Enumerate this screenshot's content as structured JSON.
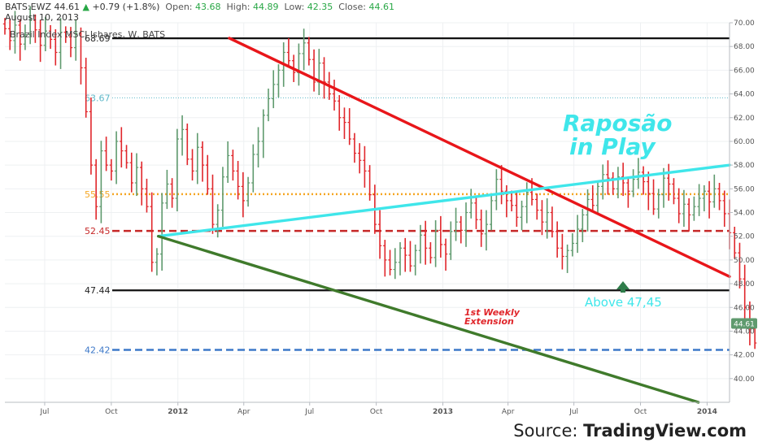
{
  "header": {
    "symbol": "BATS:EWZ",
    "last": "44.61",
    "change": "+0.79 (+1.8%)",
    "open_label": "Open:",
    "open": "43.68",
    "high_label": "High:",
    "high": "44.89",
    "low_label": "Low:",
    "low": "42.35",
    "close_label": "Close:",
    "close": "44.61",
    "date": "August 10, 2013"
  },
  "source": {
    "prefix": "Source: ",
    "brand": "TradingView.com"
  },
  "colors": {
    "up": "#5f9a6e",
    "down": "#e0262b",
    "black": "#111111",
    "red_line": "#e8161a",
    "cyan": "#3fe6ea",
    "green_line": "#3f7a2b",
    "orange": "#f5a623",
    "dark_red": "#c62828",
    "blue": "#3d78c8",
    "teal_dot": "#5fb8c9"
  },
  "chart_data": {
    "type": "candlestick",
    "title": "Brazil Index MSCI Ishares, W, BATS",
    "ylim": [
      38,
      70
    ],
    "y_ticks": [
      40,
      42,
      44,
      46,
      48,
      50,
      52,
      54,
      56,
      58,
      60,
      62,
      64,
      66,
      68,
      70
    ],
    "y_tick_labels": [
      "40.00",
      "42.00",
      "44.00",
      "46.00",
      "48.00",
      "50.00",
      "52.00",
      "54.00",
      "56.00",
      "58.00",
      "60.00",
      "62.00",
      "64.00",
      "66.00",
      "68.00",
      "70.00"
    ],
    "x_range": [
      "2011-05-07",
      "2014-02-01"
    ],
    "x_ticks": [
      {
        "label": "Jul",
        "date": "2011-07-01",
        "bold": false
      },
      {
        "label": "Oct",
        "date": "2011-10-01",
        "bold": false
      },
      {
        "label": "2012",
        "date": "2012-01-01",
        "bold": true
      },
      {
        "label": "Apr",
        "date": "2012-04-01",
        "bold": false
      },
      {
        "label": "Jul",
        "date": "2012-07-01",
        "bold": false
      },
      {
        "label": "Oct",
        "date": "2012-10-01",
        "bold": false
      },
      {
        "label": "2013",
        "date": "2013-01-01",
        "bold": true
      },
      {
        "label": "Apr",
        "date": "2013-04-01",
        "bold": false
      },
      {
        "label": "Jul",
        "date": "2013-07-01",
        "bold": false
      },
      {
        "label": "Oct",
        "date": "2013-10-01",
        "bold": false
      },
      {
        "label": "2014",
        "date": "2014-01-01",
        "bold": true
      }
    ],
    "first_week": "2011-05-07",
    "closes": [
      69.5,
      68.5,
      69.8,
      68.2,
      69.0,
      70.2,
      69.4,
      68.1,
      69.3,
      68.6,
      67.5,
      69.2,
      68.8,
      67.9,
      69.1,
      66.2,
      62.5,
      58.0,
      54.5,
      59.2,
      58.0,
      57.5,
      60.0,
      59.2,
      58.2,
      56.5,
      57.8,
      56.0,
      54.5,
      49.8,
      50.5,
      54.8,
      56.4,
      55.2,
      60.2,
      61.0,
      58.5,
      57.5,
      59.5,
      58.0,
      56.0,
      53.0,
      54.2,
      57.0,
      58.8,
      57.5,
      56.2,
      55.0,
      56.5,
      58.9,
      60.0,
      62.2,
      63.6,
      64.8,
      66.0,
      67.5,
      66.8,
      65.8,
      67.4,
      68.3,
      66.9,
      65.0,
      66.6,
      65.0,
      64.0,
      63.4,
      62.0,
      61.6,
      60.2,
      59.0,
      58.4,
      57.5,
      55.5,
      53.0,
      51.2,
      50.0,
      49.2,
      49.8,
      51.0,
      50.4,
      49.5,
      50.8,
      52.1,
      51.0,
      50.2,
      52.5,
      51.3,
      50.5,
      52.4,
      53.2,
      52.5,
      54.0,
      54.8,
      53.4,
      52.2,
      53.0,
      55.0,
      56.8,
      55.8,
      55.0,
      54.6,
      53.6,
      54.5,
      55.7,
      55.1,
      54.2,
      53.2,
      54.0,
      52.4,
      51.0,
      50.3,
      50.8,
      51.4,
      52.6,
      53.8,
      55.1,
      54.6,
      56.2,
      57.2,
      56.9,
      56.0,
      57.0,
      56.5,
      55.8,
      56.8,
      57.4,
      56.6,
      55.6,
      54.3,
      55.5,
      56.9,
      56.4,
      55.2,
      53.9,
      54.7,
      53.8,
      54.5,
      55.2,
      55.8,
      54.9,
      56.0,
      55.0,
      53.9,
      52.3,
      50.6,
      48.4,
      46.0,
      44.2,
      43.0,
      43.8,
      45.0,
      41.2,
      42.5,
      43.1,
      44.8,
      43.8,
      44.6
    ],
    "h_levels": [
      {
        "value": 68.69,
        "label": "68.69",
        "style": "solid",
        "color": "black"
      },
      {
        "value": 63.67,
        "label": "63.67",
        "style": "dotted",
        "color": "teal_dot"
      },
      {
        "value": 55.55,
        "label": "55.55",
        "style": "dotted",
        "color": "orange"
      },
      {
        "value": 52.45,
        "label": "52.45",
        "style": "dashed",
        "color": "dark_red"
      },
      {
        "value": 47.44,
        "label": "47.44",
        "style": "solid",
        "color": "black"
      },
      {
        "value": 42.42,
        "label": "42.42",
        "style": "dashed",
        "color": "blue"
      }
    ],
    "trendlines": [
      {
        "name": "upper-downtrend",
        "color": "red_line",
        "start": [
          "2012-03-12",
          68.7
        ],
        "end": [
          "2014-02-01",
          48.6
        ]
      },
      {
        "name": "rising-cyan",
        "color": "cyan",
        "start": [
          "2011-12-05",
          52.0
        ],
        "end": [
          "2014-02-01",
          58.0
        ]
      },
      {
        "name": "lower-green",
        "color": "green_line",
        "start": [
          "2011-12-05",
          52.0
        ],
        "end": [
          "2013-12-20",
          38.0
        ]
      }
    ],
    "last_price_tag": "44.61",
    "annotations": {
      "raposao_line1": "Raposão",
      "raposao_line2": "in Play",
      "weekly_line1": "1st Weekly",
      "weekly_line2": "Extension",
      "above": "Above 47,45"
    }
  }
}
